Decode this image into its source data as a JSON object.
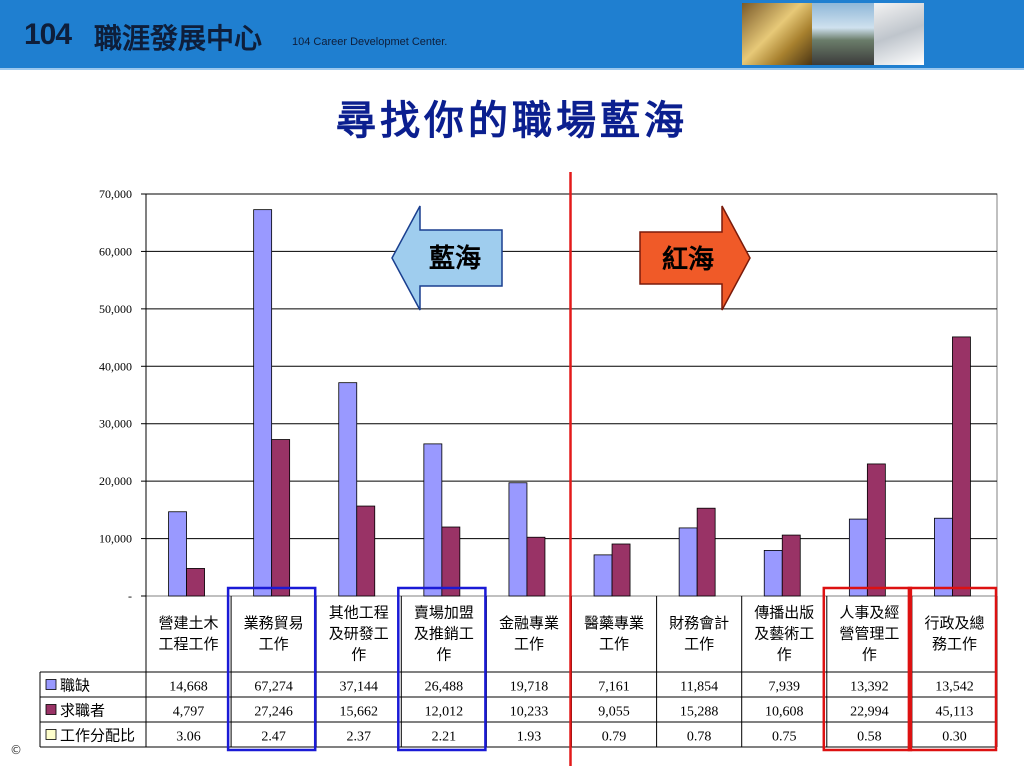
{
  "header": {
    "logo_number": "104",
    "logo_name": "職涯發展中心",
    "logo_english": "104 Career Developmet Center."
  },
  "slide": {
    "title": "尋找你的職場藍海",
    "copyright": "©"
  },
  "colors": {
    "header_bg": "#1f7fd0",
    "series_jobs": "#9999ff",
    "series_seekers": "#993366",
    "series_ratio": "#ffffcc",
    "blue_box": "#1a1ad6",
    "red_box": "#dd1111",
    "red_divider": "#e31a1a",
    "blue_arrow": "#9fcdee",
    "red_arrow": "#f05a28"
  },
  "arrows": {
    "blue_label": "藍海",
    "red_label": "紅海"
  },
  "chart_data": {
    "type": "bar",
    "ylim": [
      0,
      70000
    ],
    "yticks": [
      "70,000",
      "60,000",
      "50,000",
      "40,000",
      "30,000",
      "20,000",
      "10,000",
      "-"
    ],
    "ytick_values": [
      70000,
      60000,
      50000,
      40000,
      30000,
      20000,
      10000,
      0
    ],
    "grid": true,
    "categories": [
      [
        "營建土木",
        "工程工作"
      ],
      [
        "業務貿易",
        "工作"
      ],
      [
        "其他工程",
        "及研發工",
        "作"
      ],
      [
        "賣場加盟",
        "及推銷工",
        "作"
      ],
      [
        "金融專業",
        "工作"
      ],
      [
        "醫藥專業",
        "工作"
      ],
      [
        "財務會計",
        "工作"
      ],
      [
        "傳播出版",
        "及藝術工",
        "作"
      ],
      [
        "人事及經",
        "營管理工",
        "作"
      ],
      [
        "行政及總",
        "務工作"
      ]
    ],
    "series": [
      {
        "name": "職缺",
        "values": [
          14668,
          67274,
          37144,
          26488,
          19718,
          7161,
          11854,
          7939,
          13392,
          13542
        ]
      },
      {
        "name": "求職者",
        "values": [
          4797,
          27246,
          15662,
          12012,
          10233,
          9055,
          15288,
          10608,
          22994,
          45113
        ]
      }
    ],
    "table_rows": [
      {
        "name": "職缺",
        "cells": [
          "14,668",
          "67,274",
          "37,144",
          "26,488",
          "19,718",
          "7,161",
          "11,854",
          "7,939",
          "13,392",
          "13,542"
        ]
      },
      {
        "name": "求職者",
        "cells": [
          "4,797",
          "27,246",
          "15,662",
          "12,012",
          "10,233",
          "9,055",
          "15,288",
          "10,608",
          "22,994",
          "45,113"
        ]
      },
      {
        "name": "工作分配比",
        "cells": [
          "3.06",
          "2.47",
          "2.37",
          "2.21",
          "1.93",
          "0.79",
          "0.78",
          "0.75",
          "0.58",
          "0.30"
        ]
      }
    ],
    "blue_highlight": [
      1,
      3
    ],
    "red_highlight": [
      8,
      9
    ],
    "divider_after": 4
  }
}
